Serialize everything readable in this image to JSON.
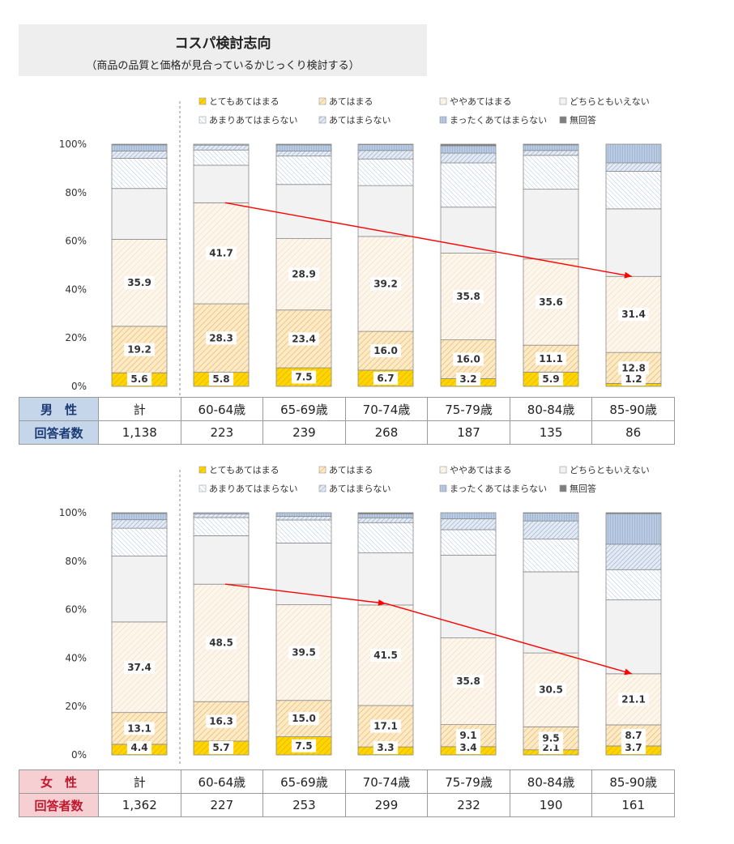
{
  "title": "コスパ検討志向",
  "subtitle": "（商品の品質と価格が見合っているかじっくり検討する）",
  "legend": [
    "とてもあてはまる",
    "あてはまる",
    "ややあてはまる",
    "どちらともいえない",
    "あまりあてはまらない",
    "あてはまらない",
    "まったくあてはまらない",
    "無回答"
  ],
  "y_ticks": [
    "100%",
    "80%",
    "60%",
    "40%",
    "20%",
    "0%"
  ],
  "male_table": {
    "header": "男　性",
    "count_label": "回答者数",
    "columns": [
      "計",
      "60-64歳",
      "65-69歳",
      "70-74歳",
      "75-79歳",
      "80-84歳",
      "85-90歳"
    ],
    "counts": [
      "1,138",
      "223",
      "239",
      "268",
      "187",
      "135",
      "86"
    ]
  },
  "female_table": {
    "header": "女　性",
    "count_label": "回答者数",
    "columns": [
      "計",
      "60-64歳",
      "65-69歳",
      "70-74歳",
      "75-79歳",
      "80-84歳",
      "85-90歳"
    ],
    "counts": [
      "1,362",
      "227",
      "253",
      "299",
      "232",
      "190",
      "161"
    ]
  },
  "chart_data": [
    {
      "type": "bar",
      "stacked": true,
      "name": "男性",
      "categories": [
        "計",
        "60-64歳",
        "65-69歳",
        "70-74歳",
        "75-79歳",
        "80-84歳",
        "85-90歳"
      ],
      "ylim": [
        0,
        100
      ],
      "series": [
        {
          "name": "とてもあてはまる",
          "values": [
            5.6,
            5.8,
            7.5,
            6.7,
            3.2,
            5.9,
            1.2
          ]
        },
        {
          "name": "あてはまる",
          "values": [
            19.2,
            28.3,
            23.4,
            16.0,
            16.0,
            11.1,
            12.8
          ]
        },
        {
          "name": "ややあてはまる",
          "values": [
            35.9,
            41.7,
            28.9,
            39.2,
            35.8,
            35.6,
            31.4
          ]
        },
        {
          "name": "どちらともいえない",
          "values": [
            21.0,
            15.5,
            21.9,
            21.0,
            19.0,
            28.8,
            27.9
          ]
        },
        {
          "name": "あまりあてはまらない",
          "values": [
            12.5,
            6.3,
            11.5,
            11.0,
            18.3,
            14.0,
            15.5
          ]
        },
        {
          "name": "あてはまらない",
          "values": [
            3.0,
            2.0,
            2.0,
            3.5,
            4.0,
            2.0,
            3.5
          ]
        },
        {
          "name": "まったくあてはまらない",
          "values": [
            2.5,
            0.4,
            2.5,
            2.4,
            3.0,
            2.3,
            7.7
          ]
        },
        {
          "name": "無回答",
          "values": [
            0.3,
            0.0,
            0.3,
            0.2,
            0.7,
            0.3,
            0.0
          ]
        }
      ],
      "labeled_series": [
        "とてもあてはまる",
        "あてはまる",
        "ややあてはまる"
      ],
      "trend_arrow": {
        "from": [
          "60-64歳",
          75.8
        ],
        "to": [
          "85-90歳",
          45.4
        ]
      }
    },
    {
      "type": "bar",
      "stacked": true,
      "name": "女性",
      "categories": [
        "計",
        "60-64歳",
        "65-69歳",
        "70-74歳",
        "75-79歳",
        "80-84歳",
        "85-90歳"
      ],
      "ylim": [
        0,
        100
      ],
      "series": [
        {
          "name": "とてもあてはまる",
          "values": [
            4.4,
            5.7,
            7.5,
            3.3,
            3.4,
            2.1,
            3.7
          ]
        },
        {
          "name": "あてはまる",
          "values": [
            13.1,
            16.3,
            15.0,
            17.1,
            9.1,
            9.5,
            8.7
          ]
        },
        {
          "name": "ややあてはまる",
          "values": [
            37.4,
            48.5,
            39.5,
            41.5,
            35.8,
            30.5,
            21.1
          ]
        },
        {
          "name": "どちらともいえない",
          "values": [
            27.2,
            20.0,
            25.5,
            21.5,
            34.2,
            33.5,
            30.5
          ]
        },
        {
          "name": "あまりあてはまらない",
          "values": [
            11.5,
            7.5,
            9.5,
            12.5,
            10.5,
            13.5,
            12.5
          ]
        },
        {
          "name": "あてはまらない",
          "values": [
            3.5,
            1.5,
            1.5,
            2.0,
            4.5,
            7.5,
            10.5
          ]
        },
        {
          "name": "まったくあてはまらない",
          "values": [
            2.6,
            0.5,
            1.5,
            1.6,
            2.5,
            3.2,
            12.6
          ]
        },
        {
          "name": "無回答",
          "values": [
            0.3,
            0.0,
            0.0,
            0.5,
            0.0,
            0.2,
            0.4
          ]
        }
      ],
      "labeled_series": [
        "とてもあてはまる",
        "あてはまる",
        "ややあてはまる"
      ],
      "trend_arrow_points": [
        [
          "60-64歳",
          70.5
        ],
        [
          "70-74歳",
          62.5
        ],
        [
          "85-90歳",
          33.5
        ]
      ]
    }
  ],
  "colors": {
    "very": "#f2c12e",
    "fits": "#f3c98a",
    "somewhat": "#f7d6b4",
    "neutral": "#f2f2f2",
    "notmuch": "#b5c7dc",
    "notfit": "#9ab3d1",
    "notatall": "#7f9ec4",
    "noanswer": "#7f7f7f",
    "arrow": "#ff0000"
  }
}
